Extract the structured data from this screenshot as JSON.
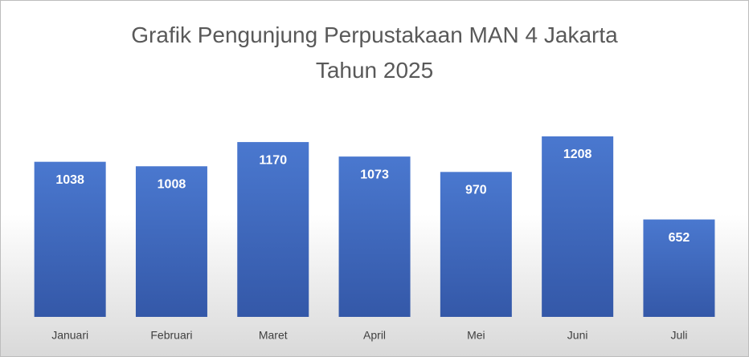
{
  "chart_data": {
    "type": "bar",
    "title": "Grafik Pengunjung Perpustakaan MAN 4 Jakarta Tahun 2025",
    "categories": [
      "Januari",
      "Februari",
      "Maret",
      "April",
      "Mei",
      "Juni",
      "Juli"
    ],
    "values": [
      1038,
      1008,
      1170,
      1073,
      970,
      1208,
      652
    ],
    "color": "#4472c4"
  }
}
